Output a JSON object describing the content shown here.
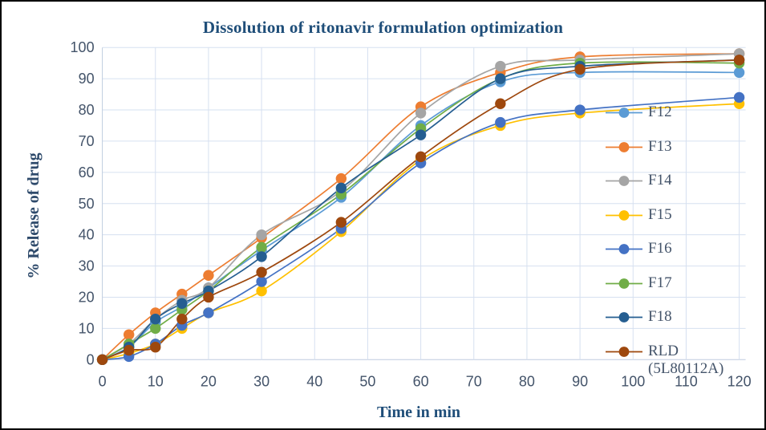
{
  "chart_data": {
    "type": "line",
    "title": "Dissolution of ritonavir formulation optimization",
    "xlabel": "Time in  min",
    "ylabel": "% Release of drug",
    "x": [
      0,
      5,
      10,
      15,
      20,
      30,
      45,
      60,
      75,
      90,
      120
    ],
    "xlim": [
      0,
      120
    ],
    "ylim": [
      0,
      100
    ],
    "xticks": [
      0,
      10,
      20,
      30,
      40,
      50,
      60,
      70,
      80,
      90,
      100,
      110,
      120
    ],
    "yticks": [
      0,
      10,
      20,
      30,
      40,
      50,
      60,
      70,
      80,
      90,
      100
    ],
    "grid": true,
    "legend_position": "right-overlay",
    "marker": "circle",
    "smooth_lines": true,
    "colors": {
      "title": "#1F4E79",
      "axis_title": "#1F4E79",
      "tick_label": "#44546A",
      "gridline": "#D6E0F0",
      "axis_line": "#BFCCDF",
      "legend_text": "#44546A",
      "frame_border": "#000000",
      "background": "#FFFFFF"
    },
    "series": [
      {
        "name": "F12",
        "color": "#5B9BD5",
        "values": [
          0,
          4,
          12,
          17,
          23,
          35,
          52,
          75,
          89,
          92,
          92
        ]
      },
      {
        "name": "F13",
        "color": "#ED7D31",
        "values": [
          0,
          8,
          15,
          21,
          27,
          39,
          58,
          81,
          92,
          97,
          98
        ]
      },
      {
        "name": "F14",
        "color": "#A5A5A5",
        "values": [
          0,
          5,
          13,
          19,
          23,
          40,
          54,
          79,
          94,
          96,
          98
        ]
      },
      {
        "name": "F15",
        "color": "#FFC000",
        "values": [
          0,
          2,
          5,
          10,
          15,
          22,
          41,
          64,
          75,
          79,
          82
        ]
      },
      {
        "name": "F16",
        "color": "#4472C4",
        "values": [
          0,
          1,
          5,
          11,
          15,
          25,
          42,
          63,
          76,
          80,
          84
        ]
      },
      {
        "name": "F17",
        "color": "#70AD47",
        "values": [
          0,
          5,
          10,
          16,
          22,
          36,
          53,
          74,
          90,
          95,
          95
        ]
      },
      {
        "name": "F18",
        "color": "#255E91",
        "values": [
          0,
          4,
          13,
          18,
          22,
          33,
          55,
          72,
          90,
          94,
          96
        ]
      },
      {
        "name": "RLD (5L80112A)",
        "color": "#9E480E",
        "values": [
          0,
          3,
          4,
          13,
          20,
          28,
          44,
          65,
          82,
          93,
          96
        ]
      }
    ]
  }
}
